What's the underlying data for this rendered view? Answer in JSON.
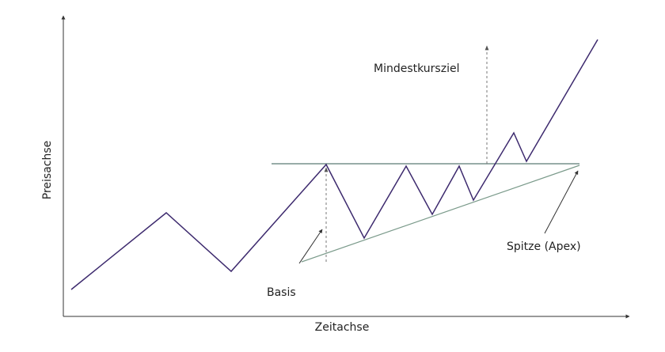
{
  "axes": {
    "y_label": "Preisachse",
    "x_label": "Zeitachse"
  },
  "annotations": {
    "target": "Mindestkursziel",
    "base": "Basis",
    "apex": "Spitze (Apex)"
  }
}
